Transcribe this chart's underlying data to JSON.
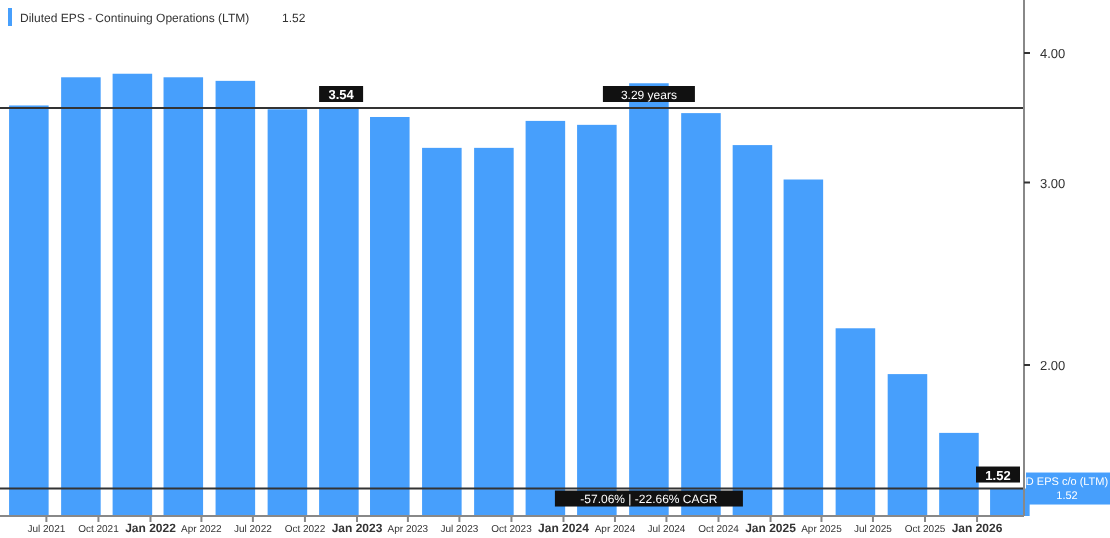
{
  "chart_data": {
    "type": "bar",
    "log": true,
    "legend": "top left",
    "grid": false,
    "x": [
      "2021-05-31",
      "2021-08-31",
      "2021-11-30",
      "2022-02-28",
      "2022-05-31",
      "2022-08-31",
      "2022-11-30",
      "2023-02-28",
      "2023-05-31",
      "2023-08-31",
      "2023-11-30",
      "2024-02-29",
      "2024-05-31",
      "2024-08-31",
      "2024-11-30",
      "2025-02-28",
      "2025-05-31",
      "2025-08-31",
      "2025-11-30",
      "2026-02-28"
    ],
    "series": [
      {
        "name": "Diluted EPS - Continuing Operations (LTM)",
        "color": "#479ffc",
        "values": [
          3.56,
          3.79,
          3.82,
          3.79,
          3.76,
          3.53,
          3.54,
          3.47,
          3.24,
          3.24,
          3.44,
          3.41,
          3.74,
          3.5,
          3.26,
          3.02,
          2.17,
          1.96,
          1.72,
          1.52
        ]
      }
    ],
    "xlim": [
      "2021-04-10",
      "2026-03-25"
    ],
    "xticks": [
      {
        "value": "2021-07-01",
        "label": "Jul 2021"
      },
      {
        "value": "2021-10-01",
        "label": "Oct 2021"
      },
      {
        "value": "2022-01-01",
        "label": "Jan 2022"
      },
      {
        "value": "2022-04-01",
        "label": "Apr 2022"
      },
      {
        "value": "2022-07-01",
        "label": "Jul 2022"
      },
      {
        "value": "2022-10-01",
        "label": "Oct 2022"
      },
      {
        "value": "2023-01-01",
        "label": "Jan 2023"
      },
      {
        "value": "2023-04-01",
        "label": "Apr 2023"
      },
      {
        "value": "2023-07-01",
        "label": "Jul 2023"
      },
      {
        "value": "2023-10-01",
        "label": "Oct 2023"
      },
      {
        "value": "2024-01-01",
        "label": "Jan 2024"
      },
      {
        "value": "2024-04-01",
        "label": "Apr 2024"
      },
      {
        "value": "2024-07-01",
        "label": "Jul 2024"
      },
      {
        "value": "2024-10-01",
        "label": "Oct 2024"
      },
      {
        "value": "2025-01-01",
        "label": "Jan 2025"
      },
      {
        "value": "2025-04-01",
        "label": "Apr 2025"
      },
      {
        "value": "2025-07-01",
        "label": "Jul 2025"
      },
      {
        "value": "2025-10-01",
        "label": "Oct 2025"
      },
      {
        "value": "2026-01-01",
        "label": "Jan 2026"
      }
    ],
    "ylim": [
      1.43,
      4.5
    ],
    "yticks": [
      {
        "value": 2,
        "label": "2.00"
      },
      {
        "value": 3,
        "label": "3.00"
      },
      {
        "value": 4,
        "label": "4.00"
      }
    ],
    "ref_lines": [
      {
        "axis": "y",
        "value": 3.54,
        "label": "3.54",
        "color": "#333333"
      },
      {
        "axis": "y",
        "value": 1.52,
        "label": "1.52",
        "color": "#333333"
      }
    ],
    "annotations": [
      "1.52",
      {
        "text": "3.29 years",
        "x": "2024-05-31",
        "y": 3.54
      },
      {
        "text": "-57.06% | -22.66% CAGR",
        "x": "2024-05-31",
        "y": 1.52
      },
      {
        "text": "D EPS c/o (LTM)\n1.52",
        "x": "2026-03-25",
        "y": 1.52
      }
    ]
  }
}
